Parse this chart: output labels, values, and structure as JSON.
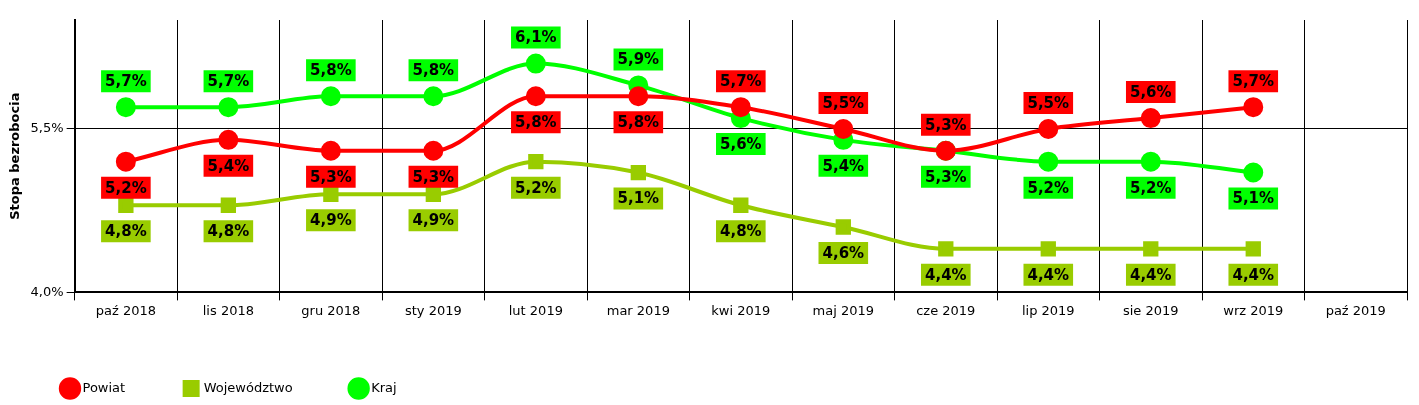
{
  "chart_data": {
    "type": "line",
    "ylabel": "Stopa bezrobocia",
    "categories": [
      "paź 2018",
      "lis 2018",
      "gru 2018",
      "sty 2019",
      "lut 2019",
      "mar 2019",
      "kwi 2019",
      "maj 2019",
      "cze 2019",
      "lip 2019",
      "sie 2019",
      "wrz 2019",
      "paź 2019"
    ],
    "series": [
      {
        "name": "Powiat",
        "color": "#ff0000",
        "marker": "circle",
        "values": [
          5.2,
          5.4,
          5.3,
          5.3,
          5.8,
          5.8,
          5.7,
          5.5,
          5.3,
          5.5,
          5.6,
          5.7,
          null
        ],
        "value_labels": [
          "5,2%",
          "5,4%",
          "5,3%",
          "5,3%",
          "5,8%",
          "5,8%",
          "5,7%",
          "5,5%",
          "5,3%",
          "5,5%",
          "5,6%",
          "5,7%",
          null
        ]
      },
      {
        "name": "Województwo",
        "color": "#99cc00",
        "marker": "square",
        "values": [
          4.8,
          4.8,
          4.9,
          4.9,
          5.2,
          5.1,
          4.8,
          4.6,
          4.4,
          4.4,
          4.4,
          4.4,
          null
        ],
        "value_labels": [
          "4,8%",
          "4,8%",
          "4,9%",
          "4,9%",
          "5,2%",
          "5,1%",
          "4,8%",
          "4,6%",
          "4,4%",
          "4,4%",
          "4,4%",
          "4,4%",
          null
        ]
      },
      {
        "name": "Kraj",
        "color": "#00ff00",
        "marker": "circle",
        "values": [
          5.7,
          5.7,
          5.8,
          5.8,
          6.1,
          5.9,
          5.6,
          5.4,
          5.3,
          5.2,
          5.2,
          5.1,
          null
        ],
        "value_labels": [
          "5,7%",
          "5,7%",
          "5,8%",
          "5,8%",
          "6,1%",
          "5,9%",
          "5,6%",
          "5,4%",
          "5,3%",
          "5,2%",
          "5,2%",
          "5,1%",
          null
        ]
      }
    ],
    "ylim": [
      4.0,
      6.5
    ],
    "yticks": [
      {
        "value": 4.0,
        "label": "4,0%"
      },
      {
        "value": 5.5,
        "label": "5,5%"
      }
    ],
    "grid": true,
    "legend": "bottom left"
  }
}
